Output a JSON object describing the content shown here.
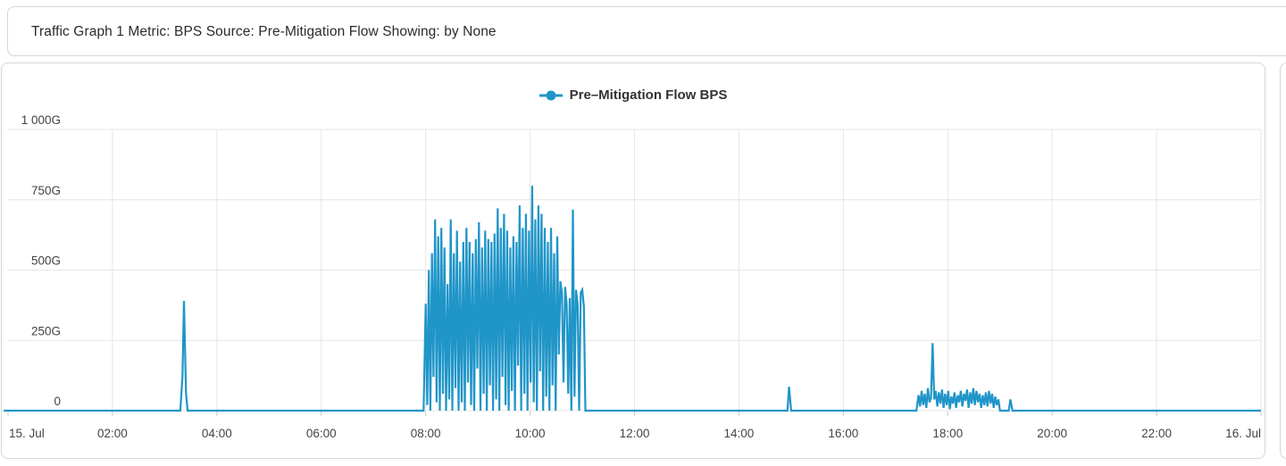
{
  "header": {
    "title": "Traffic Graph 1 Metric: BPS Source: Pre-Mitigation Flow Showing: by None"
  },
  "chart_data": {
    "type": "line",
    "title": "",
    "legend_position": "top-center",
    "legend_marker": "circle-with-line",
    "series_color": "#2095c8",
    "grid": true,
    "gridline_color": "#e6e6e6",
    "tick_color": "#c9c9c9",
    "label_color": "#444444",
    "x_unit": "hours since 15. Jul 00:00",
    "y_unit": "bps (G = Gigabits/s)",
    "xlim": [
      0,
      24
    ],
    "ylim": [
      0,
      1000
    ],
    "yticks": [
      {
        "value": 0,
        "label": "0"
      },
      {
        "value": 250,
        "label": "250G"
      },
      {
        "value": 500,
        "label": "500G"
      },
      {
        "value": 750,
        "label": "750G"
      },
      {
        "value": 1000,
        "label": "1 000G"
      }
    ],
    "xticks": [
      {
        "hour": 0,
        "label": "15. Jul"
      },
      {
        "hour": 2,
        "label": "02:00"
      },
      {
        "hour": 4,
        "label": "04:00"
      },
      {
        "hour": 6,
        "label": "06:00"
      },
      {
        "hour": 8,
        "label": "08:00"
      },
      {
        "hour": 10,
        "label": "10:00"
      },
      {
        "hour": 12,
        "label": "12:00"
      },
      {
        "hour": 14,
        "label": "14:00"
      },
      {
        "hour": 16,
        "label": "16:00"
      },
      {
        "hour": 18,
        "label": "18:00"
      },
      {
        "hour": 20,
        "label": "20:00"
      },
      {
        "hour": 22,
        "label": "22:00"
      },
      {
        "hour": 24,
        "label": "16. Jul"
      }
    ],
    "series": [
      {
        "name": "Pre–Mitigation Flow BPS",
        "points": [
          [
            0,
            0
          ],
          [
            3.3,
            0
          ],
          [
            3.34,
            120
          ],
          [
            3.37,
            390
          ],
          [
            3.41,
            60
          ],
          [
            3.44,
            0
          ],
          [
            7.96,
            0
          ],
          [
            8.0,
            380
          ],
          [
            8.03,
            20
          ],
          [
            8.06,
            500
          ],
          [
            8.09,
            0
          ],
          [
            8.12,
            560
          ],
          [
            8.15,
            120
          ],
          [
            8.18,
            680
          ],
          [
            8.21,
            30
          ],
          [
            8.24,
            620
          ],
          [
            8.27,
            0
          ],
          [
            8.3,
            650
          ],
          [
            8.33,
            60
          ],
          [
            8.36,
            580
          ],
          [
            8.39,
            0
          ],
          [
            8.42,
            450
          ],
          [
            8.45,
            40
          ],
          [
            8.48,
            680
          ],
          [
            8.51,
            0
          ],
          [
            8.54,
            560
          ],
          [
            8.57,
            80
          ],
          [
            8.6,
            640
          ],
          [
            8.63,
            0
          ],
          [
            8.66,
            530
          ],
          [
            8.69,
            30
          ],
          [
            8.72,
            600
          ],
          [
            8.75,
            0
          ],
          [
            8.78,
            650
          ],
          [
            8.81,
            100
          ],
          [
            8.84,
            600
          ],
          [
            8.87,
            20
          ],
          [
            8.9,
            560
          ],
          [
            8.93,
            0
          ],
          [
            8.96,
            610
          ],
          [
            8.99,
            150
          ],
          [
            9.02,
            670
          ],
          [
            9.05,
            0
          ],
          [
            9.08,
            580
          ],
          [
            9.11,
            60
          ],
          [
            9.14,
            640
          ],
          [
            9.17,
            0
          ],
          [
            9.2,
            610
          ],
          [
            9.23,
            90
          ],
          [
            9.26,
            600
          ],
          [
            9.29,
            0
          ],
          [
            9.32,
            630
          ],
          [
            9.35,
            40
          ],
          [
            9.38,
            720
          ],
          [
            9.41,
            0
          ],
          [
            9.44,
            650
          ],
          [
            9.47,
            120
          ],
          [
            9.5,
            700
          ],
          [
            9.53,
            20
          ],
          [
            9.56,
            640
          ],
          [
            9.59,
            0
          ],
          [
            9.62,
            580
          ],
          [
            9.65,
            70
          ],
          [
            9.68,
            620
          ],
          [
            9.71,
            0
          ],
          [
            9.74,
            600
          ],
          [
            9.77,
            160
          ],
          [
            9.8,
            730
          ],
          [
            9.83,
            0
          ],
          [
            9.86,
            650
          ],
          [
            9.89,
            60
          ],
          [
            9.92,
            700
          ],
          [
            9.95,
            0
          ],
          [
            9.98,
            640
          ],
          [
            10.01,
            100
          ],
          [
            10.04,
            800
          ],
          [
            10.07,
            30
          ],
          [
            10.1,
            680
          ],
          [
            10.13,
            0
          ],
          [
            10.16,
            730
          ],
          [
            10.19,
            140
          ],
          [
            10.22,
            700
          ],
          [
            10.25,
            0
          ],
          [
            10.28,
            650
          ],
          [
            10.31,
            50
          ],
          [
            10.34,
            600
          ],
          [
            10.37,
            0
          ],
          [
            10.4,
            650
          ],
          [
            10.43,
            90
          ],
          [
            10.46,
            560
          ],
          [
            10.49,
            0
          ],
          [
            10.52,
            620
          ],
          [
            10.55,
            200
          ],
          [
            10.58,
            460
          ],
          [
            10.61,
            420
          ],
          [
            10.64,
            100
          ],
          [
            10.67,
            440
          ],
          [
            10.7,
            380
          ],
          [
            10.73,
            60
          ],
          [
            10.76,
            400
          ],
          [
            10.79,
            0
          ],
          [
            10.82,
            715
          ],
          [
            10.85,
            50
          ],
          [
            10.88,
            430
          ],
          [
            10.91,
            380
          ],
          [
            10.94,
            0
          ],
          [
            10.97,
            420
          ],
          [
            11.0,
            430
          ],
          [
            11.03,
            370
          ],
          [
            11.06,
            0
          ],
          [
            14.93,
            0
          ],
          [
            14.96,
            85
          ],
          [
            15.0,
            0
          ],
          [
            17.4,
            0
          ],
          [
            17.44,
            55
          ],
          [
            17.47,
            15
          ],
          [
            17.5,
            70
          ],
          [
            17.53,
            20
          ],
          [
            17.56,
            60
          ],
          [
            17.59,
            10
          ],
          [
            17.62,
            80
          ],
          [
            17.65,
            30
          ],
          [
            17.68,
            45
          ],
          [
            17.71,
            240
          ],
          [
            17.74,
            40
          ],
          [
            17.77,
            70
          ],
          [
            17.8,
            15
          ],
          [
            17.83,
            65
          ],
          [
            17.86,
            25
          ],
          [
            17.89,
            75
          ],
          [
            17.92,
            10
          ],
          [
            17.95,
            60
          ],
          [
            17.98,
            20
          ],
          [
            18.01,
            70
          ],
          [
            18.04,
            5
          ],
          [
            18.07,
            50
          ],
          [
            18.1,
            25
          ],
          [
            18.13,
            65
          ],
          [
            18.16,
            10
          ],
          [
            18.19,
            55
          ],
          [
            18.22,
            30
          ],
          [
            18.25,
            70
          ],
          [
            18.28,
            15
          ],
          [
            18.31,
            60
          ],
          [
            18.34,
            35
          ],
          [
            18.37,
            75
          ],
          [
            18.4,
            10
          ],
          [
            18.43,
            65
          ],
          [
            18.46,
            25
          ],
          [
            18.49,
            80
          ],
          [
            18.52,
            20
          ],
          [
            18.55,
            70
          ],
          [
            18.58,
            30
          ],
          [
            18.61,
            60
          ],
          [
            18.64,
            10
          ],
          [
            18.67,
            55
          ],
          [
            18.7,
            20
          ],
          [
            18.73,
            65
          ],
          [
            18.76,
            15
          ],
          [
            18.79,
            70
          ],
          [
            18.82,
            25
          ],
          [
            18.85,
            60
          ],
          [
            18.88,
            10
          ],
          [
            18.91,
            50
          ],
          [
            18.94,
            20
          ],
          [
            18.97,
            40
          ],
          [
            19.0,
            0
          ],
          [
            19.17,
            0
          ],
          [
            19.2,
            40
          ],
          [
            19.24,
            0
          ],
          [
            24,
            0
          ]
        ]
      }
    ]
  }
}
